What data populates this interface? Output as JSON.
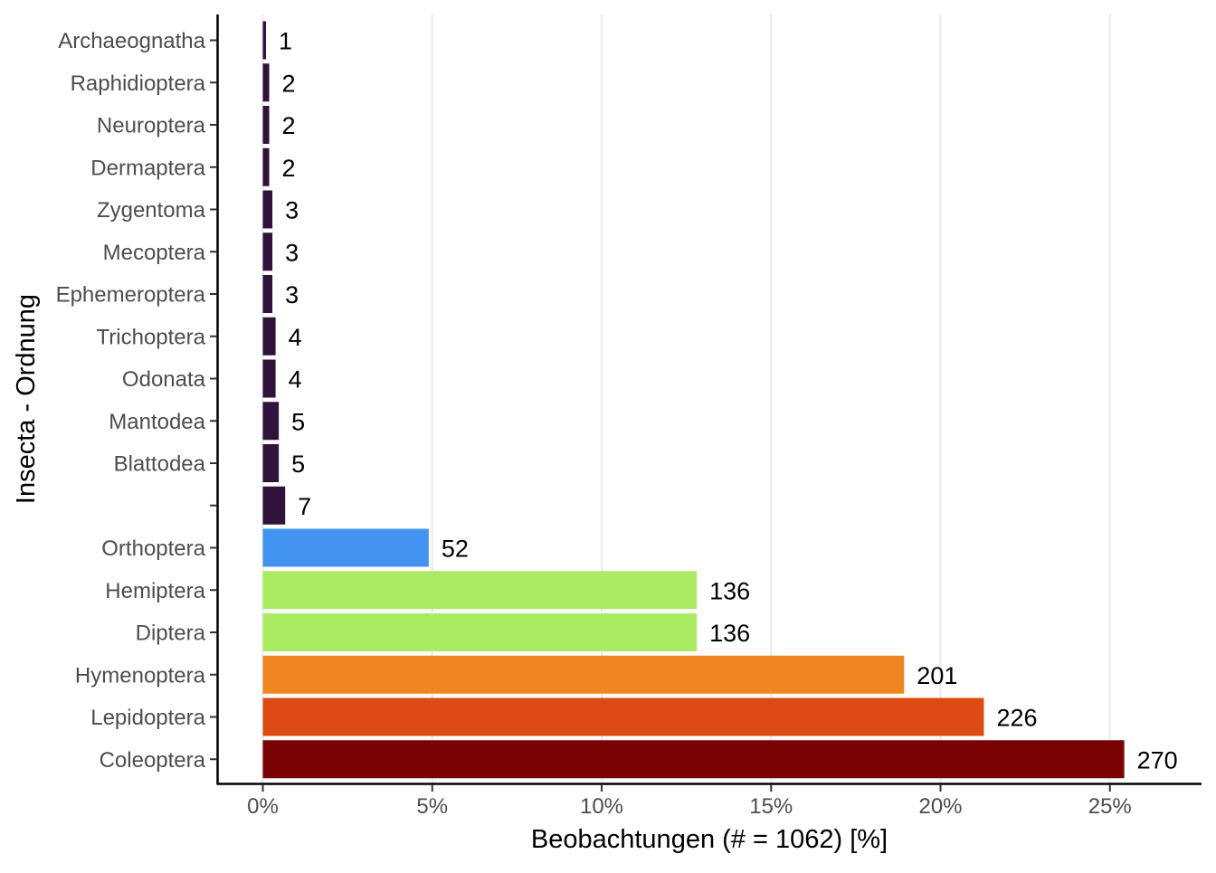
{
  "chart_data": {
    "type": "bar",
    "orientation": "horizontal",
    "xlabel": "Beobachtungen (# = 1062) [%]",
    "ylabel": "Insecta - Ordnung",
    "total": 1062,
    "xlim": [
      0,
      27.7
    ],
    "xticks": [
      0,
      5,
      10,
      15,
      20,
      25
    ],
    "xtick_labels": [
      "0%",
      "5%",
      "10%",
      "15%",
      "20%",
      "25%"
    ],
    "grid": "vertical major",
    "legend": "none",
    "categories": [
      "Archaeognatha",
      "Raphidioptera",
      "Neuroptera",
      "Dermaptera",
      "Zygentoma",
      "Mecoptera",
      "Ephemeroptera",
      "Trichoptera",
      "Odonata",
      "Mantodea",
      "Blattodea",
      "",
      "Orthoptera",
      "Hemiptera",
      "Diptera",
      "Hymenoptera",
      "Lepidoptera",
      "Coleoptera"
    ],
    "values": [
      1,
      2,
      2,
      2,
      3,
      3,
      3,
      4,
      4,
      5,
      5,
      7,
      52,
      136,
      136,
      201,
      226,
      270
    ],
    "value_labels": [
      "1",
      "2",
      "2",
      "2",
      "3",
      "3",
      "3",
      "4",
      "4",
      "5",
      "5",
      "7",
      "52",
      "136",
      "136",
      "201",
      "226",
      "270"
    ],
    "colors": [
      "#30123B",
      "#30123B",
      "#30123B",
      "#30123B",
      "#30123B",
      "#30123B",
      "#30123B",
      "#30123B",
      "#30123B",
      "#30123B",
      "#30123B",
      "#30123B",
      "#4294F0",
      "#AAEB64",
      "#AAEB64",
      "#F0861F",
      "#DC4C12",
      "#7A0403"
    ]
  }
}
